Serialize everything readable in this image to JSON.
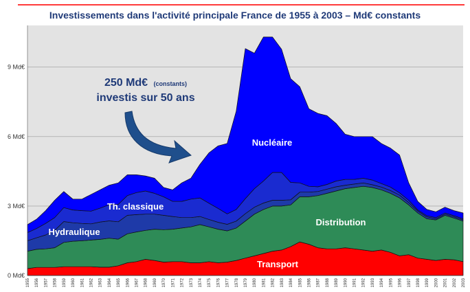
{
  "chart_data": {
    "type": "area",
    "stacked": true,
    "title": "Investissements dans l'activité principale France de 1955 à 2003 – Md€ constants",
    "ylim": [
      0,
      10.8
    ],
    "yticks": [
      0,
      3,
      6,
      9
    ],
    "ytick_labels": [
      "0 Md€",
      "3 Md€",
      "6 Md€",
      "9 Md€"
    ],
    "grid": true,
    "x": [
      1955,
      1956,
      1957,
      1958,
      1959,
      1960,
      1961,
      1962,
      1963,
      1964,
      1965,
      1966,
      1967,
      1968,
      1969,
      1970,
      1971,
      1972,
      1973,
      1974,
      1975,
      1976,
      1977,
      1978,
      1979,
      1980,
      1981,
      1982,
      1983,
      1984,
      1985,
      1986,
      1987,
      1988,
      1989,
      1990,
      1991,
      1992,
      1993,
      1994,
      1995,
      1996,
      1997,
      1998,
      1999,
      2000,
      2001,
      2002,
      2003
    ],
    "series": [
      {
        "name": "Transport",
        "color": "#ff0000",
        "values": [
          0.3,
          0.35,
          0.35,
          0.35,
          0.38,
          0.38,
          0.38,
          0.38,
          0.36,
          0.36,
          0.42,
          0.55,
          0.6,
          0.7,
          0.65,
          0.58,
          0.6,
          0.6,
          0.55,
          0.55,
          0.6,
          0.55,
          0.58,
          0.65,
          0.75,
          0.85,
          0.95,
          1.05,
          1.1,
          1.25,
          1.45,
          1.35,
          1.2,
          1.15,
          1.15,
          1.2,
          1.15,
          1.1,
          1.05,
          1.1,
          1.0,
          0.85,
          0.9,
          0.75,
          0.7,
          0.65,
          0.7,
          0.68,
          0.6
        ]
      },
      {
        "name": "Distribution",
        "color": "#2e8b57",
        "values": [
          0.75,
          0.78,
          0.8,
          0.85,
          1.05,
          1.1,
          1.12,
          1.15,
          1.2,
          1.25,
          1.15,
          1.25,
          1.28,
          1.25,
          1.35,
          1.4,
          1.4,
          1.45,
          1.55,
          1.65,
          1.5,
          1.45,
          1.35,
          1.4,
          1.6,
          1.8,
          1.9,
          1.95,
          1.9,
          1.8,
          1.95,
          2.05,
          2.25,
          2.4,
          2.5,
          2.55,
          2.65,
          2.75,
          2.75,
          2.6,
          2.55,
          2.5,
          2.15,
          1.95,
          1.75,
          1.75,
          1.9,
          1.8,
          1.75
        ]
      },
      {
        "name": "Hydraulique",
        "color": "#1e3aa8",
        "values": [
          0.45,
          0.5,
          0.6,
          0.75,
          0.9,
          0.8,
          0.75,
          0.7,
          0.75,
          0.75,
          0.75,
          0.8,
          0.75,
          0.7,
          0.65,
          0.62,
          0.55,
          0.45,
          0.4,
          0.35,
          0.32,
          0.3,
          0.28,
          0.3,
          0.32,
          0.3,
          0.28,
          0.25,
          0.25,
          0.22,
          0.2,
          0.2,
          0.18,
          0.18,
          0.18,
          0.15,
          0.15,
          0.15,
          0.12,
          0.12,
          0.12,
          0.12,
          0.1,
          0.08,
          0.08,
          0.05,
          0.05,
          0.05,
          0.05
        ]
      },
      {
        "name": "Th. classique",
        "color": "#1a2bd0",
        "values": [
          0.35,
          0.4,
          0.5,
          0.55,
          0.6,
          0.55,
          0.55,
          0.55,
          0.6,
          0.7,
          0.75,
          0.85,
          0.95,
          1.0,
          0.9,
          0.8,
          0.65,
          0.7,
          0.8,
          0.8,
          0.7,
          0.6,
          0.45,
          0.5,
          0.65,
          0.8,
          0.95,
          1.2,
          1.2,
          0.75,
          0.4,
          0.25,
          0.2,
          0.2,
          0.25,
          0.25,
          0.2,
          0.2,
          0.2,
          0.15,
          0.15,
          0.1,
          0.1,
          0.05,
          0.05,
          0.05,
          0.05,
          0.05,
          0.05
        ]
      },
      {
        "name": "Nucléaire",
        "color": "#0000ff",
        "values": [
          0.35,
          0.4,
          0.55,
          0.75,
          0.7,
          0.47,
          0.5,
          0.72,
          0.79,
          0.84,
          0.93,
          0.9,
          0.77,
          0.65,
          0.65,
          0.4,
          0.5,
          0.8,
          0.9,
          1.45,
          2.18,
          2.7,
          3.04,
          4.25,
          6.48,
          5.85,
          6.22,
          5.85,
          5.32,
          4.48,
          4.15,
          3.35,
          3.17,
          2.97,
          2.49,
          1.95,
          1.85,
          1.8,
          1.88,
          1.73,
          1.68,
          1.63,
          0.75,
          0.37,
          0.27,
          0.25,
          0.25,
          0.22,
          0.25
        ]
      }
    ],
    "band_labels": {
      "transport": "Transport",
      "distribution": "Distribution",
      "hydraulique": "Hydraulique",
      "classique": "Th. classique",
      "nucleaire": "Nucléaire"
    }
  },
  "annotation": {
    "line1": "250 Md€",
    "line1_small": "(constants)",
    "line2": "investis sur 50 ans"
  }
}
